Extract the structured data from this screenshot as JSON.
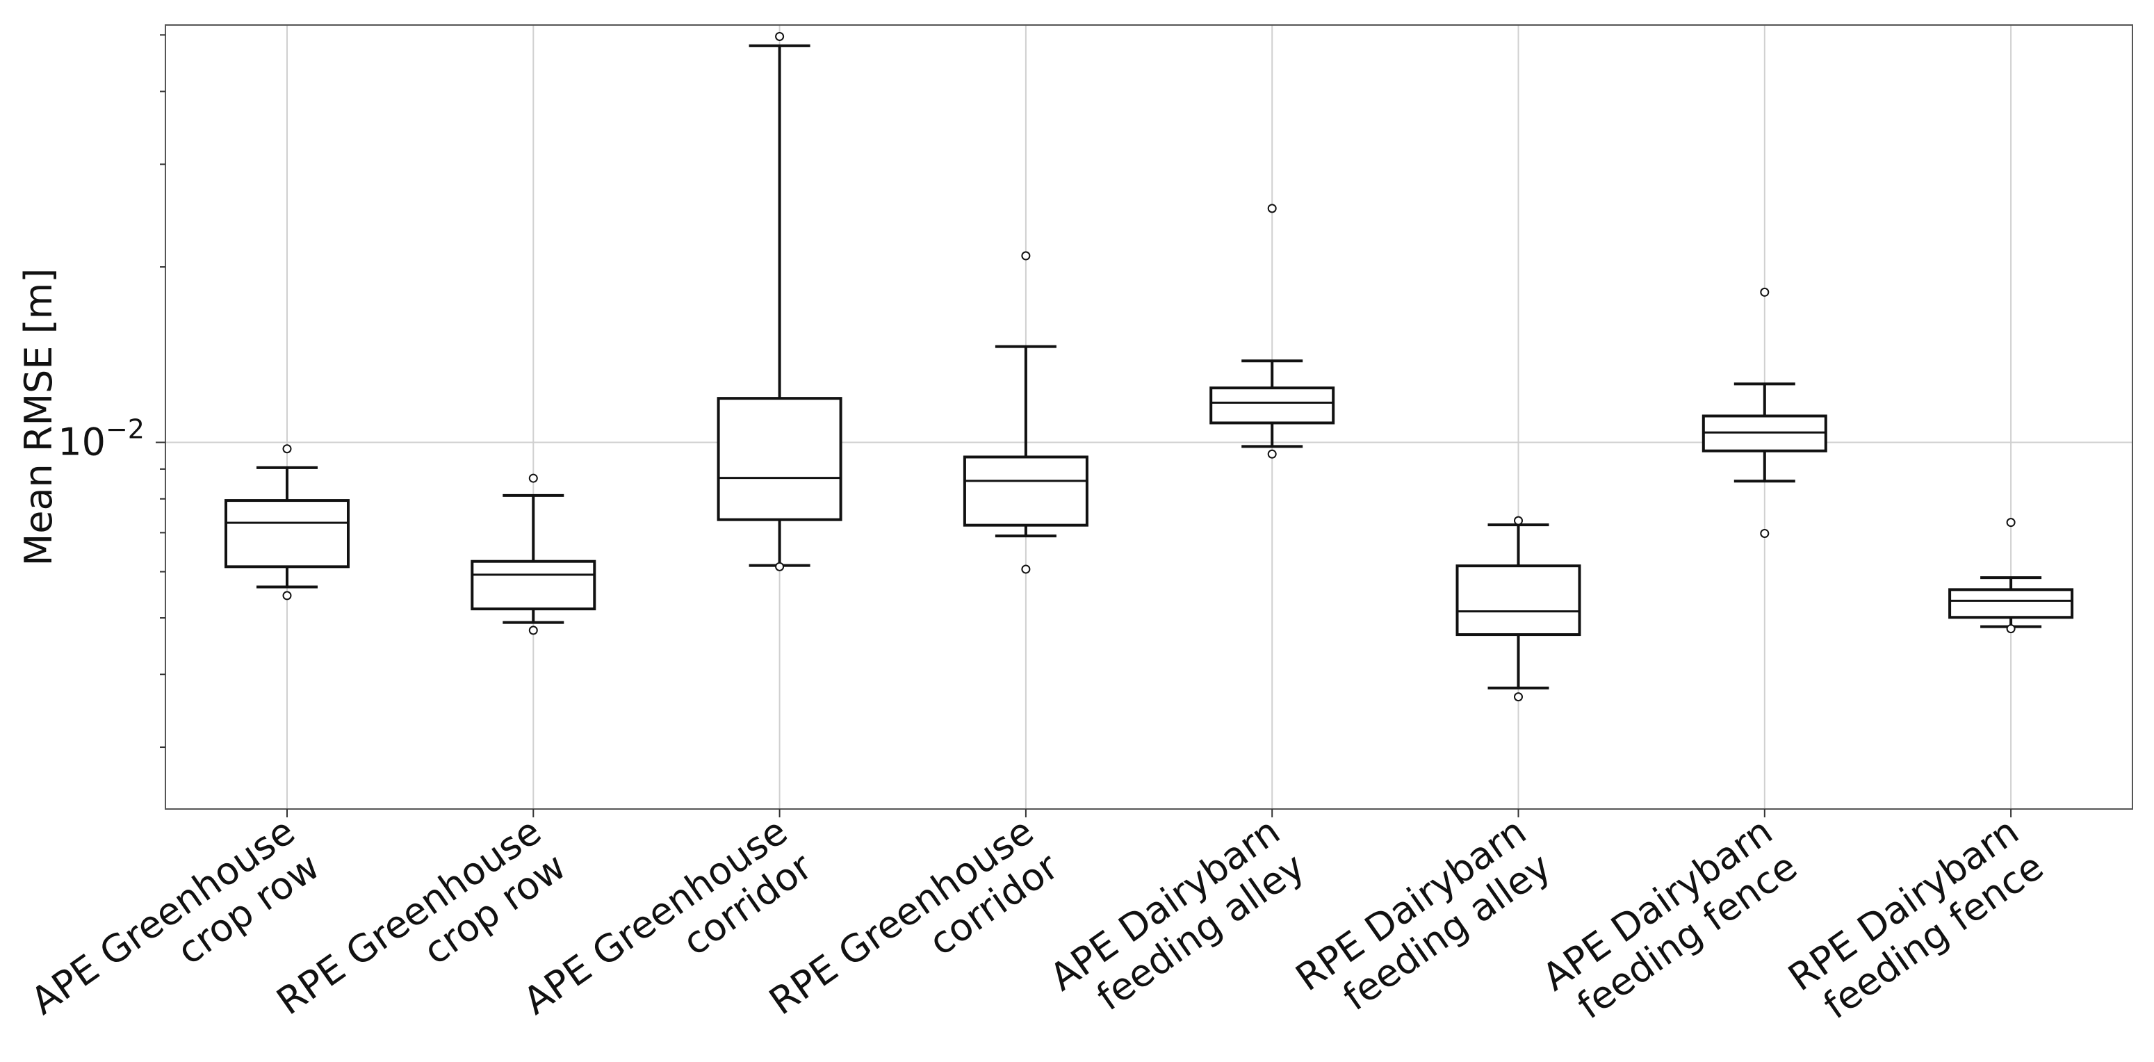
{
  "chart_data": {
    "type": "box",
    "title": "",
    "xlabel": "",
    "ylabel": "Mean RMSE [m]",
    "yscale": "log",
    "ylim": [
      0.00235,
      0.052
    ],
    "grid": true,
    "y_tick_label": {
      "base": "10",
      "exp": "−2"
    },
    "categories": [
      [
        "APE Greenhouse",
        "crop row"
      ],
      [
        "RPE Greenhouse",
        "crop row"
      ],
      [
        "APE Greenhouse",
        "corridor"
      ],
      [
        "RPE Greenhouse",
        "corridor"
      ],
      [
        "APE Dairybarn",
        "feeding alley"
      ],
      [
        "RPE Dairybarn",
        "feeding alley"
      ],
      [
        "APE Dairybarn",
        "feeding fence"
      ],
      [
        "RPE Dairybarn",
        "feeding fence"
      ]
    ],
    "boxes": [
      {
        "whislo": 0.00565,
        "q1": 0.00612,
        "med": 0.00728,
        "q3": 0.00795,
        "whishi": 0.00905,
        "fliers": [
          0.00546,
          0.00975
        ]
      },
      {
        "whislo": 0.00491,
        "q1": 0.00518,
        "med": 0.00593,
        "q3": 0.00625,
        "whishi": 0.00811,
        "fliers": [
          0.00476,
          0.00868
        ]
      },
      {
        "whislo": 0.00615,
        "q1": 0.00737,
        "med": 0.00869,
        "q3": 0.0119,
        "whishi": 0.0479,
        "fliers": [
          0.00612,
          0.0497
        ]
      },
      {
        "whislo": 0.00691,
        "q1": 0.00721,
        "med": 0.00859,
        "q3": 0.00944,
        "whishi": 0.0146,
        "fliers": [
          0.00606,
          0.0209
        ]
      },
      {
        "whislo": 0.00984,
        "q1": 0.0108,
        "med": 0.0117,
        "q3": 0.0124,
        "whishi": 0.0138,
        "fliers": [
          0.00955,
          0.0252
        ]
      },
      {
        "whislo": 0.00379,
        "q1": 0.00468,
        "med": 0.00513,
        "q3": 0.00614,
        "whishi": 0.00722,
        "fliers": [
          0.00366,
          0.00734
        ]
      },
      {
        "whislo": 0.00858,
        "q1": 0.00967,
        "med": 0.0104,
        "q3": 0.0111,
        "whishi": 0.0126,
        "fliers": [
          0.00698,
          0.0181
        ]
      },
      {
        "whislo": 0.00483,
        "q1": 0.00501,
        "med": 0.00535,
        "q3": 0.00559,
        "whishi": 0.00586,
        "fliers": [
          0.00479,
          0.00729
        ]
      }
    ]
  }
}
